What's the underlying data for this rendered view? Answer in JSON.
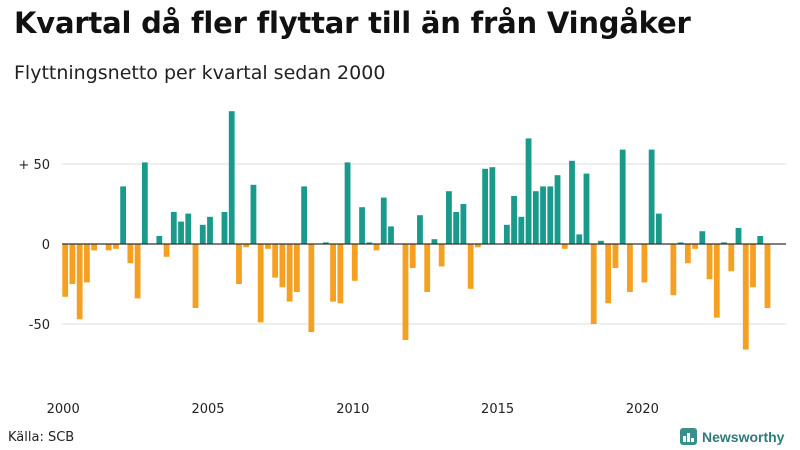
{
  "title": "Kvartal då fler flyttar till än från Vingåker",
  "subtitle": "Flyttningsnetto per kvartal sedan 2000",
  "source": "Källa: SCB",
  "brand": {
    "name": "Newsworthy",
    "icon": "bar-chart-icon"
  },
  "colors": {
    "positive": "#1a9a8a",
    "negative": "#f5a020",
    "grid": "#dddddd",
    "axis": "#333333"
  },
  "chart_data": {
    "type": "bar",
    "start": "2000 Q1",
    "x_ticks": [
      {
        "label": "2000",
        "index": 0
      },
      {
        "label": "2005",
        "index": 20
      },
      {
        "label": "2010",
        "index": 40
      },
      {
        "label": "2015",
        "index": 60
      },
      {
        "label": "2020",
        "index": 80
      }
    ],
    "y_ticks": [
      {
        "label": "+ 50",
        "value": 50
      },
      {
        "label": "0",
        "value": 0
      },
      {
        "label": "-50",
        "value": -50
      }
    ],
    "ylim": [
      -88,
      88
    ],
    "grid": true,
    "values": [
      -33,
      -25,
      -47,
      -24,
      -4,
      0,
      -4,
      -3,
      36,
      -12,
      -34,
      51,
      0,
      5,
      -8,
      20,
      14,
      19,
      -40,
      12,
      17,
      0,
      20,
      83,
      -25,
      -2,
      37,
      -49,
      -3,
      -21,
      -27,
      -36,
      -30,
      36,
      -55,
      0,
      1,
      -36,
      -37,
      51,
      -23,
      23,
      1,
      -4,
      29,
      11,
      0,
      -60,
      -15,
      18,
      -30,
      3,
      -14,
      33,
      20,
      25,
      -28,
      -2,
      47,
      48,
      0,
      12,
      30,
      17,
      66,
      33,
      36,
      36,
      43,
      -3,
      52,
      6,
      44,
      -50,
      2,
      -37,
      -15,
      59,
      -30,
      0,
      -24,
      59,
      19,
      0,
      -32,
      1,
      -12,
      -3,
      8,
      -22,
      -46,
      1,
      -17,
      10,
      -66,
      -27,
      5,
      -40
    ]
  }
}
